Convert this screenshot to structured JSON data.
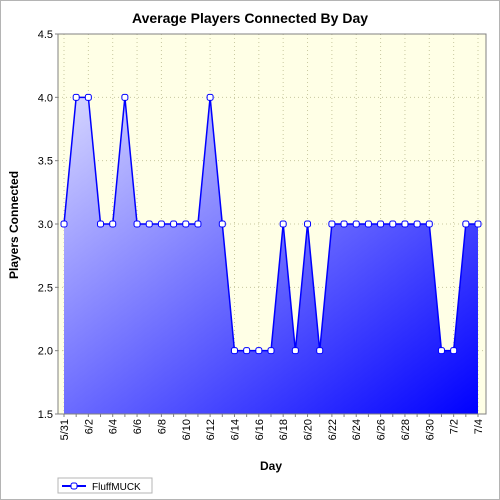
{
  "chart_data": {
    "type": "area",
    "title": "Average Players Connected By Day",
    "xlabel": "Day",
    "ylabel": "Players Connected",
    "ylim": [
      1.5,
      4.5
    ],
    "yticks": [
      "1.5",
      "2.0",
      "2.5",
      "3.0",
      "3.5",
      "4.0",
      "4.5"
    ],
    "x": [
      "5/31",
      "6/1",
      "6/2",
      "6/3",
      "6/4",
      "6/5",
      "6/6",
      "6/7",
      "6/8",
      "6/9",
      "6/10",
      "6/11",
      "6/12",
      "6/13",
      "6/14",
      "6/15",
      "6/16",
      "6/17",
      "6/18",
      "6/19",
      "6/20",
      "6/21",
      "6/22",
      "6/23",
      "6/24",
      "6/25",
      "6/26",
      "6/27",
      "6/28",
      "6/29",
      "6/30",
      "7/1",
      "7/2",
      "7/3",
      "7/4"
    ],
    "xtick_labels": [
      "5/31",
      "6/2",
      "6/4",
      "6/6",
      "6/8",
      "6/10",
      "6/12",
      "6/14",
      "6/16",
      "6/18",
      "6/20",
      "6/22",
      "6/24",
      "6/26",
      "6/28",
      "6/30",
      "7/2",
      "7/4"
    ],
    "series": [
      {
        "name": "FluffMUCK",
        "values": [
          3,
          4,
          4,
          3,
          3,
          4,
          3,
          3,
          3,
          3,
          3,
          3,
          4,
          3,
          2,
          2,
          2,
          2,
          3,
          2,
          3,
          2,
          3,
          3,
          3,
          3,
          3,
          3,
          3,
          3,
          3,
          2,
          2,
          3,
          3
        ]
      }
    ],
    "grid": true,
    "legend": "bottom-left",
    "colors": {
      "line": "#0000ff",
      "fill_light": "#d6d6ff",
      "fill_dark": "#0000ff",
      "plot_background": "#ffffe6",
      "grid": "#c8c8a0",
      "marker_fill": "#ffffff"
    }
  }
}
